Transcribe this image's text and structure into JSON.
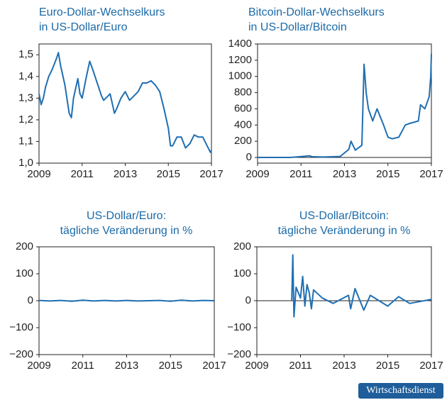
{
  "chart_data": [
    {
      "type": "line",
      "title": [
        "Euro-Dollar-Wechselkurs",
        "in US-Dollar/Euro"
      ],
      "zero_line": false,
      "xlim": [
        2009,
        2017
      ],
      "xticks": [
        2009,
        2011,
        2013,
        2015,
        2017
      ],
      "ylim": [
        1.0,
        1.55
      ],
      "yticks": [
        {
          "value": 1.0,
          "label": "1,0"
        },
        {
          "value": 1.1,
          "label": "1,1"
        },
        {
          "value": 1.2,
          "label": "1,2"
        },
        {
          "value": 1.3,
          "label": "1,3"
        },
        {
          "value": 1.4,
          "label": "1,4"
        },
        {
          "value": 1.5,
          "label": "1,5"
        }
      ],
      "series": [
        {
          "color": "#1f6fb2",
          "x": [
            2009.0,
            2009.1,
            2009.2,
            2009.3,
            2009.45,
            2009.6,
            2009.8,
            2009.9,
            2010.0,
            2010.2,
            2010.4,
            2010.5,
            2010.6,
            2010.8,
            2010.9,
            2011.0,
            2011.2,
            2011.35,
            2011.5,
            2011.7,
            2011.9,
            2012.0,
            2012.3,
            2012.5,
            2012.6,
            2012.8,
            2013.0,
            2013.2,
            2013.4,
            2013.6,
            2013.8,
            2014.0,
            2014.2,
            2014.4,
            2014.6,
            2014.8,
            2015.0,
            2015.1,
            2015.2,
            2015.4,
            2015.6,
            2015.8,
            2016.0,
            2016.2,
            2016.4,
            2016.6,
            2016.8,
            2016.95,
            2017.0
          ],
          "values": [
            1.32,
            1.27,
            1.3,
            1.35,
            1.4,
            1.43,
            1.48,
            1.51,
            1.45,
            1.36,
            1.23,
            1.21,
            1.3,
            1.39,
            1.32,
            1.3,
            1.4,
            1.47,
            1.43,
            1.37,
            1.31,
            1.29,
            1.32,
            1.23,
            1.25,
            1.3,
            1.33,
            1.29,
            1.31,
            1.33,
            1.37,
            1.37,
            1.38,
            1.36,
            1.33,
            1.25,
            1.16,
            1.08,
            1.08,
            1.12,
            1.12,
            1.07,
            1.09,
            1.13,
            1.12,
            1.12,
            1.08,
            1.05,
            1.06
          ]
        }
      ]
    },
    {
      "type": "line",
      "title": [
        "Bitcoin-Dollar-Wechselkurs",
        "in US-Dollar/Bitcoin"
      ],
      "zero_line": true,
      "xlim": [
        2009,
        2017
      ],
      "xticks": [
        2009,
        2011,
        2013,
        2015,
        2017
      ],
      "ylim": [
        -70,
        1400
      ],
      "yticks": [
        0,
        200,
        400,
        600,
        800,
        1000,
        1200,
        1400
      ],
      "series": [
        {
          "color": "#1f6fb2",
          "x": [
            2009.0,
            2010.0,
            2010.5,
            2011.4,
            2011.5,
            2012.0,
            2012.8,
            2013.2,
            2013.3,
            2013.5,
            2013.8,
            2013.9,
            2014.0,
            2014.1,
            2014.3,
            2014.5,
            2014.8,
            2015.0,
            2015.2,
            2015.5,
            2015.8,
            2016.0,
            2016.4,
            2016.5,
            2016.7,
            2016.9,
            2016.97,
            2017.0
          ],
          "values": [
            0,
            0,
            0,
            20,
            10,
            5,
            12,
            100,
            200,
            90,
            150,
            1150,
            800,
            600,
            450,
            600,
            400,
            250,
            230,
            250,
            400,
            420,
            450,
            650,
            600,
            750,
            1000,
            1280
          ]
        }
      ]
    },
    {
      "type": "line",
      "title": [
        "US-Dollar/Euro:",
        "tägliche Veränderung in %"
      ],
      "zero_line": true,
      "xlim": [
        2009,
        2017
      ],
      "xticks": [
        2009,
        2011,
        2013,
        2015,
        2017
      ],
      "ylim": [
        -200,
        200
      ],
      "yticks": [
        {
          "value": -200,
          "label": "−200"
        },
        {
          "value": -100,
          "label": "−100"
        },
        0,
        100,
        200
      ],
      "series": [
        {
          "color": "#1f6fb2",
          "x": [
            2009.0,
            2009.5,
            2010.0,
            2010.5,
            2011.0,
            2011.5,
            2012.0,
            2012.5,
            2013.0,
            2013.5,
            2014.0,
            2014.5,
            2015.0,
            2015.5,
            2016.0,
            2016.5,
            2017.0
          ],
          "values": [
            1,
            -1,
            1,
            -2,
            2,
            -1,
            1,
            -1,
            1,
            -1,
            0,
            1,
            -2,
            2,
            -1,
            1,
            0
          ]
        }
      ]
    },
    {
      "type": "line",
      "title": [
        "US-Dollar/Bitcoin:",
        "tägliche Veränderung in %"
      ],
      "zero_line": true,
      "xlim": [
        2009,
        2017
      ],
      "xticks": [
        2009,
        2011,
        2013,
        2015,
        2017
      ],
      "ylim": [
        -200,
        200
      ],
      "yticks": [
        {
          "value": -200,
          "label": "−200"
        },
        {
          "value": -100,
          "label": "−100"
        },
        0,
        100,
        200
      ],
      "series": [
        {
          "color": "#1f6fb2",
          "x": [
            2010.6,
            2010.65,
            2010.7,
            2010.8,
            2011.0,
            2011.1,
            2011.2,
            2011.3,
            2011.4,
            2011.5,
            2011.6,
            2012.0,
            2012.5,
            2013.2,
            2013.3,
            2013.5,
            2013.9,
            2014.2,
            2015.0,
            2015.5,
            2016.0,
            2017.0
          ],
          "values": [
            0,
            170,
            -60,
            50,
            10,
            90,
            -20,
            60,
            30,
            -30,
            40,
            10,
            -10,
            20,
            -30,
            45,
            -35,
            20,
            -20,
            15,
            -10,
            5
          ]
        }
      ]
    }
  ],
  "badge": "Wirtschaftsdienst"
}
